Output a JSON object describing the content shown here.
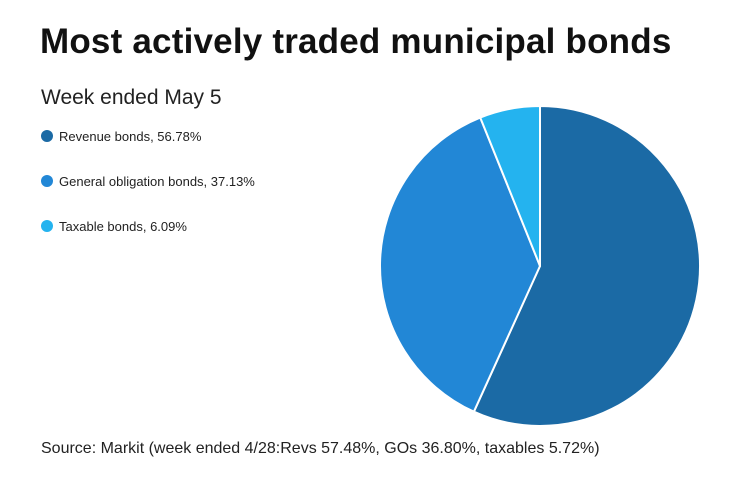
{
  "chart_data": {
    "type": "pie",
    "title": "Most actively traded municipal bonds",
    "subtitle": "Week ended May 5",
    "slices": [
      {
        "label": "Revenue bonds, 56.78%",
        "value": 56.78,
        "color": "#1b6aa5"
      },
      {
        "label": "General obligation bonds, 37.13%",
        "value": 37.13,
        "color": "#2287d6"
      },
      {
        "label": "Taxable bonds, 6.09%",
        "value": 6.09,
        "color": "#24b3ef"
      }
    ],
    "legend_position": "top-left",
    "source": "Source: Markit (week ended 4/28:Revs 57.48%, GOs 36.80%, taxables 5.72%)"
  }
}
